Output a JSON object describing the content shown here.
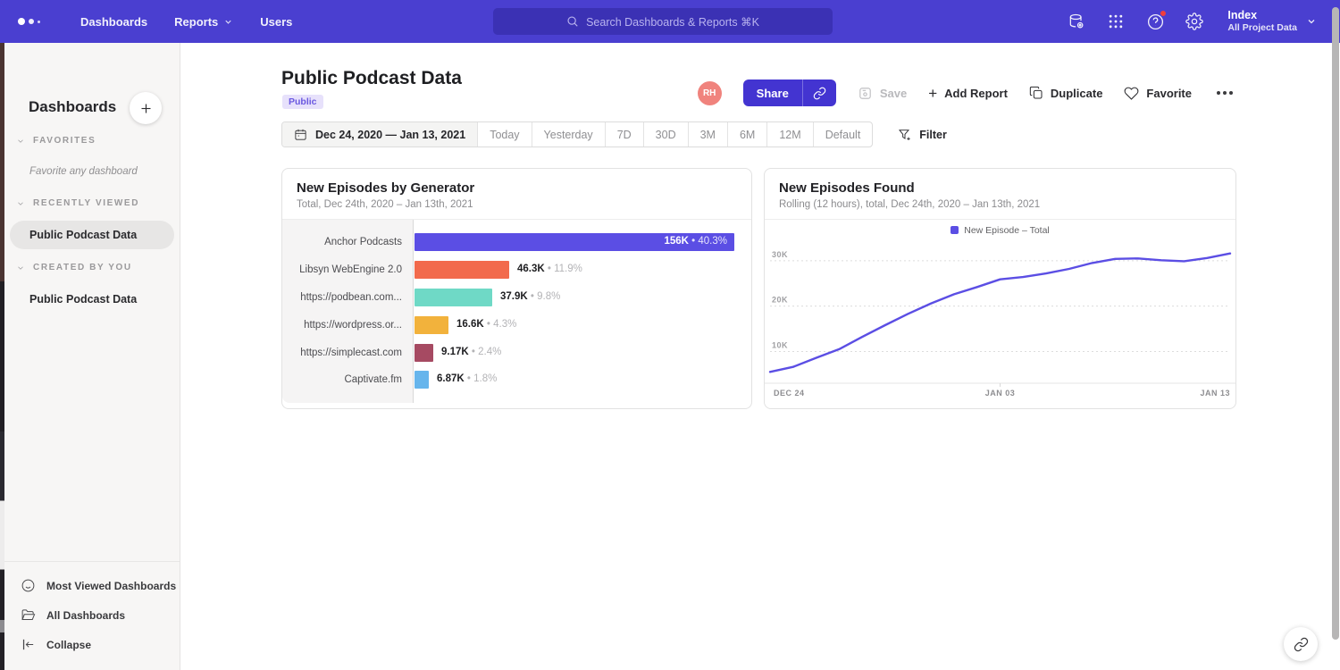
{
  "nav": {
    "items": [
      {
        "label": "Dashboards",
        "chevron": false
      },
      {
        "label": "Reports",
        "chevron": true
      },
      {
        "label": "Users",
        "chevron": false
      }
    ],
    "search_placeholder": "Search Dashboards & Reports ⌘K",
    "project": {
      "name": "Index",
      "subtitle": "All Project Data"
    },
    "colors": {
      "bar": "#4a3fd0",
      "search_bg": "#3b31b4"
    }
  },
  "sidebar": {
    "title": "Dashboards",
    "sections": [
      {
        "label": "FAVORITES",
        "empty_text": "Favorite any dashboard",
        "items": []
      },
      {
        "label": "RECENTLY VIEWED",
        "empty_text": "",
        "items": [
          {
            "label": "Public Podcast Data",
            "selected": true
          }
        ]
      },
      {
        "label": "CREATED BY YOU",
        "empty_text": "",
        "items": [
          {
            "label": "Public Podcast Data",
            "selected": false
          }
        ]
      }
    ],
    "footer": [
      {
        "label": "Most Viewed Dashboards",
        "icon": "smiley-icon"
      },
      {
        "label": "All Dashboards",
        "icon": "folder-icon"
      },
      {
        "label": "Collapse",
        "icon": "collapse-icon"
      }
    ]
  },
  "header": {
    "title": "Public Podcast Data",
    "badge": "Public",
    "avatar_initials": "RH",
    "share_label": "Share",
    "save_label": "Save",
    "add_report_label": "Add Report",
    "add_report_plus": "+",
    "duplicate_label": "Duplicate",
    "favorite_label": "Favorite"
  },
  "date_bar": {
    "range": "Dec 24, 2020 — Jan 13, 2021",
    "presets": [
      "Today",
      "Yesterday",
      "7D",
      "30D",
      "3M",
      "6M",
      "12M",
      "Default"
    ],
    "filter_label": "Filter"
  },
  "chart_data": [
    {
      "type": "bar",
      "orientation": "horizontal",
      "title": "New Episodes by Generator",
      "subtitle": "Total, Dec 24th, 2020 – Jan 13th, 2021",
      "categories": [
        "Anchor Podcasts",
        "Libsyn WebEngine 2.0",
        "https://podbean.com...",
        "https://wordpress.or...",
        "https://simplecast.com",
        "Captivate.fm"
      ],
      "values": [
        156000,
        46300,
        37900,
        16600,
        9170,
        6870
      ],
      "value_labels": [
        "156K",
        "46.3K",
        "37.9K",
        "16.6K",
        "9.17K",
        "6.87K"
      ],
      "percent_labels": [
        "40.3%",
        "11.9%",
        "9.8%",
        "4.3%",
        "2.4%",
        "1.8%"
      ],
      "bar_colors": [
        "#5b4ee4",
        "#f26a4c",
        "#6fd9c6",
        "#f2b23c",
        "#a64a62",
        "#66b5ec"
      ],
      "xlim": [
        0,
        156000
      ],
      "separator": "•"
    },
    {
      "type": "line",
      "title": "New Episodes Found",
      "subtitle": "Rolling (12 hours), total, Dec 24th, 2020 – Jan 13th, 2021",
      "legend": [
        {
          "label": "New Episode – Total",
          "color": "#5b4ee4"
        }
      ],
      "line_color": "#5b4ee4",
      "x_tick_labels": [
        "DEC 24",
        "JAN 03",
        "JAN 13"
      ],
      "y_tick_labels": [
        "10K",
        "20K",
        "30K"
      ],
      "y_ticks": [
        10000,
        20000,
        30000
      ],
      "y_domain": [
        3000,
        34500
      ],
      "grid": "dotted-horizontal",
      "legend_position": "top-center",
      "x": [
        "Dec 24",
        "Dec 25",
        "Dec 26",
        "Dec 27",
        "Dec 28",
        "Dec 29",
        "Dec 30",
        "Dec 31",
        "Jan 01",
        "Jan 02",
        "Jan 03",
        "Jan 04",
        "Jan 05",
        "Jan 06",
        "Jan 07",
        "Jan 08",
        "Jan 09",
        "Jan 10",
        "Jan 11",
        "Jan 12",
        "Jan 13"
      ],
      "values": [
        5500,
        6600,
        8600,
        10500,
        13200,
        15800,
        18300,
        20600,
        22600,
        24200,
        25900,
        26400,
        27200,
        28200,
        29500,
        30400,
        30500,
        30100,
        29900,
        30600,
        31600
      ]
    }
  ]
}
